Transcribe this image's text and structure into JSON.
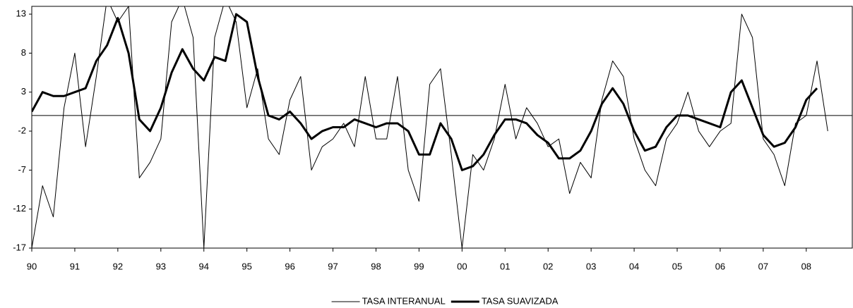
{
  "chart_data": {
    "type": "line",
    "x": [
      1990,
      1990.25,
      1990.5,
      1990.75,
      1991,
      1991.25,
      1991.5,
      1991.75,
      1992,
      1992.25,
      1992.5,
      1992.75,
      1993,
      1993.25,
      1993.5,
      1993.75,
      1994,
      1994.25,
      1994.5,
      1994.75,
      1995,
      1995.25,
      1995.5,
      1995.75,
      1996,
      1996.25,
      1996.5,
      1996.75,
      1997,
      1997.25,
      1997.5,
      1997.75,
      1998,
      1998.25,
      1998.5,
      1998.75,
      1999,
      1999.25,
      1999.5,
      1999.75,
      2000,
      2000.25,
      2000.5,
      2000.75,
      2001,
      2001.25,
      2001.5,
      2001.75,
      2002,
      2002.25,
      2002.5,
      2002.75,
      2003,
      2003.25,
      2003.5,
      2003.75,
      2004,
      2004.25,
      2004.5,
      2004.75,
      2005,
      2005.25,
      2005.5,
      2005.75,
      2006,
      2006.25,
      2006.5,
      2006.75,
      2007,
      2007.25,
      2007.5,
      2007.75,
      2008,
      2008.25,
      2008.5
    ],
    "series": [
      {
        "name": "TASA INTERANUAL",
        "color": "#000000",
        "width": 1,
        "values": [
          -17,
          -9,
          -13,
          1,
          8,
          -4,
          5,
          15,
          12,
          14,
          -8,
          -6,
          -3,
          12,
          15,
          10,
          -17,
          10,
          15,
          12,
          1,
          6,
          -3,
          -5,
          2,
          5,
          -7,
          -4,
          -3,
          -1,
          -4,
          5,
          -3,
          -3,
          5,
          -7,
          -11,
          4,
          6,
          -5,
          -17,
          -5,
          -7,
          -3,
          4,
          -3,
          1,
          -1,
          -4,
          -3,
          -10,
          -6,
          -8,
          2,
          7,
          5,
          -3,
          -7,
          -9,
          -3,
          -1,
          3,
          -2,
          -4,
          -2,
          -1,
          13,
          10,
          -3,
          -5,
          -9,
          -1,
          0,
          7,
          -2
        ]
      },
      {
        "name": "TASA SUAVIZADA",
        "color": "#000000",
        "width": 3,
        "values": [
          0.5,
          3,
          2.5,
          2.5,
          3,
          3.5,
          7,
          9,
          12.5,
          8,
          -0.5,
          -2,
          1,
          5.5,
          8.5,
          6,
          4.5,
          7.5,
          7,
          13,
          12,
          5,
          0,
          -0.5,
          0.5,
          -1,
          -3,
          -2,
          -1.5,
          -1.5,
          -0.5,
          -1,
          -1.5,
          -1,
          -1,
          -2,
          -5,
          -5,
          -1,
          -3,
          -7,
          -6.5,
          -5,
          -2.5,
          -0.5,
          -0.5,
          -1,
          -2.5,
          -3.5,
          -5.5,
          -5.5,
          -4.5,
          -2,
          1.5,
          3.5,
          1.5,
          -2,
          -4.5,
          -4,
          -1.5,
          0,
          0,
          -0.5,
          -1,
          -1.5,
          3,
          4.5,
          1,
          -2.5,
          -4,
          -3.5,
          -1.5,
          2,
          3.5,
          null
        ]
      }
    ],
    "xlim": [
      1990,
      2009.07
    ],
    "xticks": [
      {
        "value": 1990,
        "label": "90"
      },
      {
        "value": 1991,
        "label": "91"
      },
      {
        "value": 1992,
        "label": "92"
      },
      {
        "value": 1993,
        "label": "93"
      },
      {
        "value": 1994,
        "label": "94"
      },
      {
        "value": 1995,
        "label": "95"
      },
      {
        "value": 1996,
        "label": "96"
      },
      {
        "value": 1997,
        "label": "97"
      },
      {
        "value": 1998,
        "label": "98"
      },
      {
        "value": 1999,
        "label": "99"
      },
      {
        "value": 2000,
        "label": "00"
      },
      {
        "value": 2001,
        "label": "01"
      },
      {
        "value": 2002,
        "label": "02"
      },
      {
        "value": 2003,
        "label": "03"
      },
      {
        "value": 2004,
        "label": "04"
      },
      {
        "value": 2005,
        "label": "05"
      },
      {
        "value": 2006,
        "label": "06"
      },
      {
        "value": 2007,
        "label": "07"
      },
      {
        "value": 2008,
        "label": "08"
      }
    ],
    "ylim": [
      -17,
      14
    ],
    "yticks": [
      -17,
      -12,
      -7,
      -2,
      3,
      8,
      13
    ],
    "grid": false,
    "legend": "bottom"
  }
}
